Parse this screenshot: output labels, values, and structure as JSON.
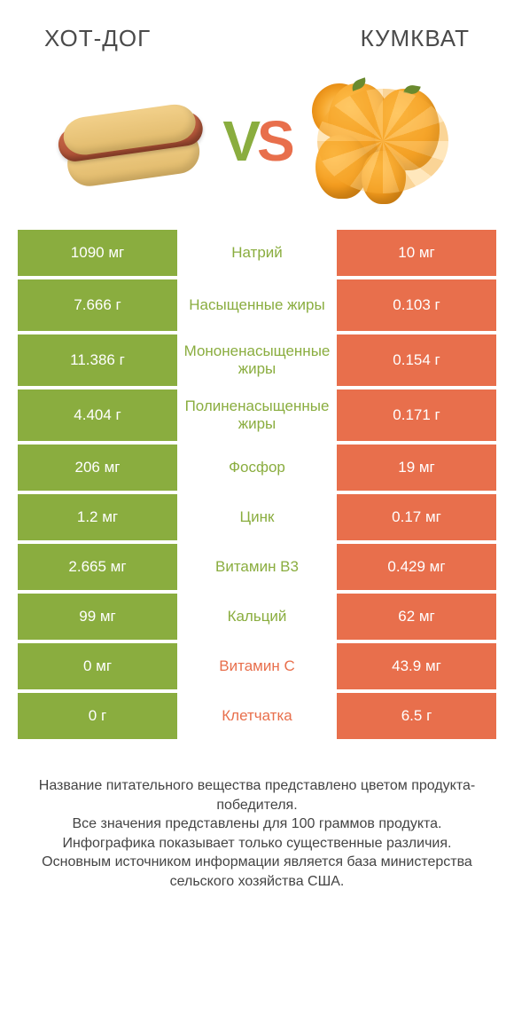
{
  "colors": {
    "green": "#8aad3f",
    "orange": "#e86f4c",
    "mid_green": "#8aad3f",
    "mid_orange": "#e86f4c",
    "row_bg_left": "#8aad3f",
    "row_bg_right": "#e86f4c"
  },
  "header": {
    "left": "ХОТ-ДОГ",
    "right": "КУМКВАТ"
  },
  "vs": {
    "v": "V",
    "s": "S"
  },
  "rows": [
    {
      "left": "1090 мг",
      "label": "Натрий",
      "right": "10 мг",
      "winner": "left",
      "tall": false
    },
    {
      "left": "7.666 г",
      "label": "Насыщенные жиры",
      "right": "0.103 г",
      "winner": "left",
      "tall": true
    },
    {
      "left": "11.386 г",
      "label": "Мононенасыщенные жиры",
      "right": "0.154 г",
      "winner": "left",
      "tall": true
    },
    {
      "left": "4.404 г",
      "label": "Полиненасыщенные жиры",
      "right": "0.171 г",
      "winner": "left",
      "tall": true
    },
    {
      "left": "206 мг",
      "label": "Фосфор",
      "right": "19 мг",
      "winner": "left",
      "tall": false
    },
    {
      "left": "1.2 мг",
      "label": "Цинк",
      "right": "0.17 мг",
      "winner": "left",
      "tall": false
    },
    {
      "left": "2.665 мг",
      "label": "Витамин B3",
      "right": "0.429 мг",
      "winner": "left",
      "tall": false
    },
    {
      "left": "99 мг",
      "label": "Кальций",
      "right": "62 мг",
      "winner": "left",
      "tall": false
    },
    {
      "left": "0 мг",
      "label": "Витамин C",
      "right": "43.9 мг",
      "winner": "right",
      "tall": false
    },
    {
      "left": "0 г",
      "label": "Клетчатка",
      "right": "6.5 г",
      "winner": "right",
      "tall": false
    }
  ],
  "footer": {
    "l1": "Название питательного вещества представлено цветом продукта-победителя.",
    "l2": "Все значения представлены для 100 граммов продукта.",
    "l3": "Инфографика показывает только существенные различия.",
    "l4": "Основным источником информации является база министерства сельского хозяйства США."
  }
}
